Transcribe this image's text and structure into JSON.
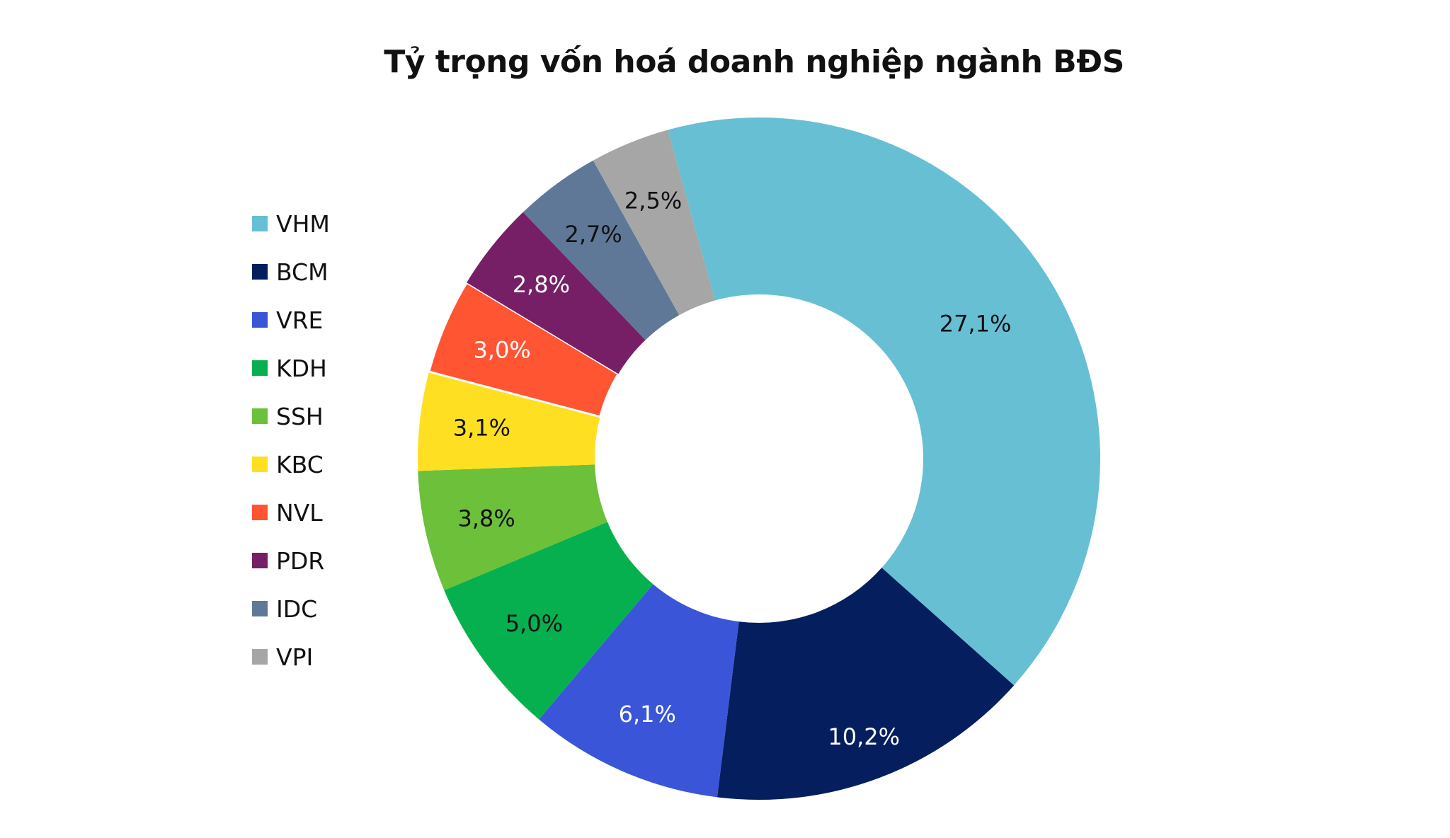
{
  "chart_data": {
    "type": "pie",
    "variant": "donut",
    "title": "Tỷ trọng vốn hoá doanh nghiệp ngành BĐS",
    "legend_position": "left",
    "categories": [
      "VHM",
      "BCM",
      "VRE",
      "KDH",
      "SSH",
      "KBC",
      "NVL",
      "PDR",
      "IDC",
      "VPI"
    ],
    "values": [
      27.1,
      10.2,
      6.1,
      5.0,
      3.8,
      3.1,
      3.0,
      2.8,
      2.7,
      2.5
    ],
    "labels": [
      "27,1%",
      "10,2%",
      "6,1%",
      "5,0%",
      "3,8%",
      "3,1%",
      "3,0%",
      "2,8%",
      "2,7%",
      "2,5%"
    ],
    "colors": [
      "#67bfd3",
      "#041e5e",
      "#3b55d8",
      "#07b04f",
      "#6cc03a",
      "#ffdf22",
      "#ff5533",
      "#761f66",
      "#5f7898",
      "#a6a6a6"
    ],
    "label_colors": [
      "#111111",
      "#ffffff",
      "#ffffff",
      "#111111",
      "#111111",
      "#111111",
      "#ffffff",
      "#ffffff",
      "#111111",
      "#111111"
    ]
  }
}
